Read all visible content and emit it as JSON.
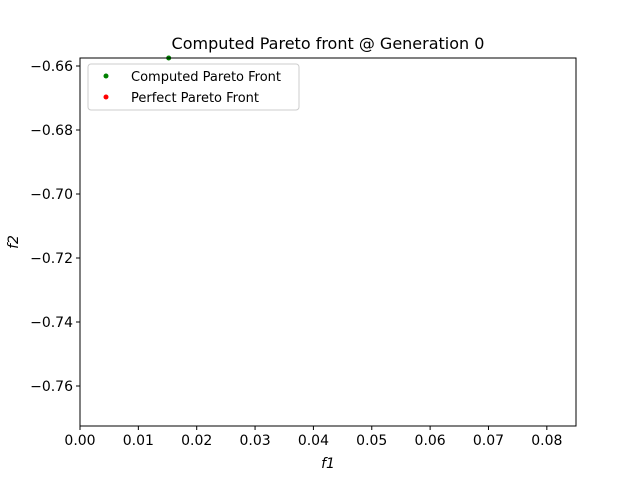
{
  "chart_data": {
    "type": "scatter",
    "title": "Computed Pareto front @ Generation 0",
    "xlabel": "f1",
    "ylabel": "f2",
    "xlim": [
      0.0,
      0.085
    ],
    "ylim": [
      -0.7725,
      -0.6575
    ],
    "x_ticks": [
      "0.00",
      "0.01",
      "0.02",
      "0.03",
      "0.04",
      "0.05",
      "0.06",
      "0.07",
      "0.08"
    ],
    "x_tick_values": [
      0.0,
      0.01,
      0.02,
      0.03,
      0.04,
      0.05,
      0.06,
      0.07,
      0.08
    ],
    "y_ticks": [
      "−0.66",
      "−0.68",
      "−0.70",
      "−0.72",
      "−0.74",
      "−0.76"
    ],
    "y_tick_values": [
      -0.66,
      -0.68,
      -0.7,
      -0.72,
      -0.74,
      -0.76
    ],
    "grid": false,
    "legend_position": "top-left",
    "series": [
      {
        "name": "Computed Pareto Front",
        "color": "#008000",
        "points": [
          [
            0.0152,
            -0.6575
          ]
        ]
      },
      {
        "name": "Perfect Pareto Front",
        "color": "#ff0000",
        "points": []
      }
    ]
  }
}
